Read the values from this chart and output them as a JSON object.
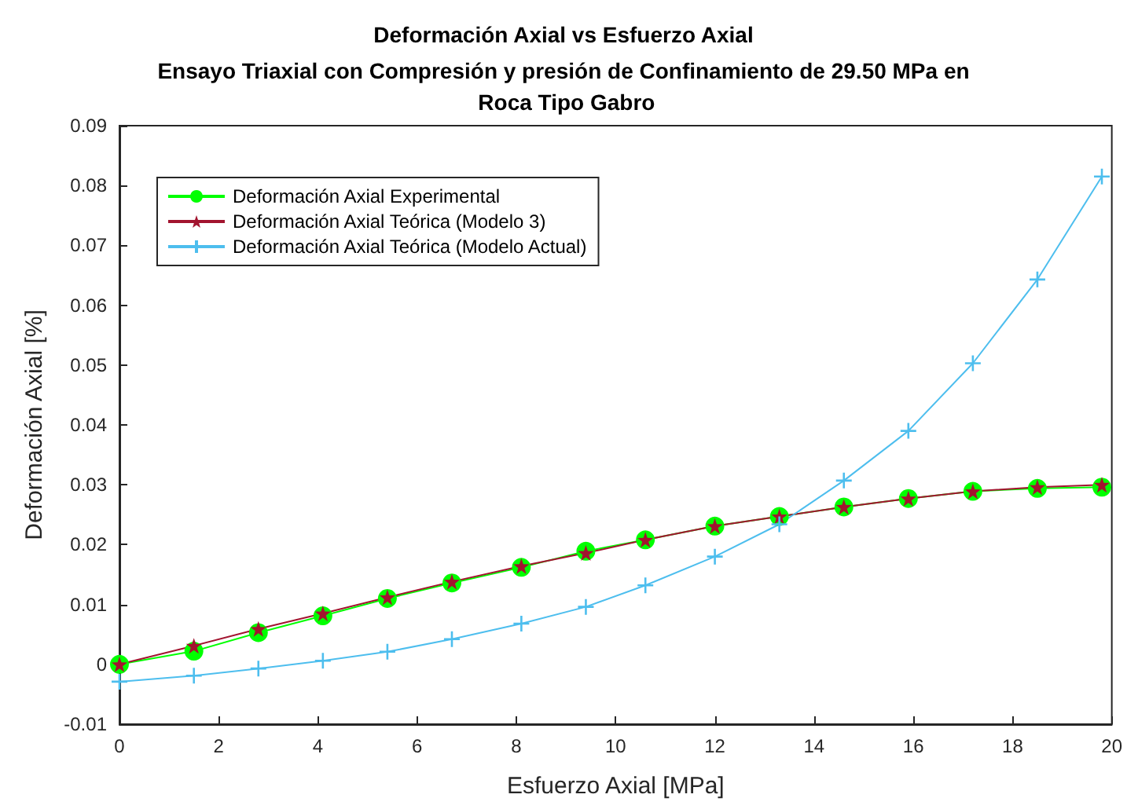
{
  "chart_data": {
    "type": "line",
    "title": "Deformación Axial vs Esfuerzo Axial",
    "subtitle": "Ensayo Triaxial con Compresión y presión de Confinamiento de 29.50 MPa en Roca Tipo Gabro",
    "xlabel": "Esfuerzo Axial [MPa]",
    "ylabel": "Deformación Axial [%]",
    "x": [
      0,
      1.5,
      2.8,
      4.1,
      5.4,
      6.7,
      8.1,
      9.4,
      10.6,
      12.0,
      13.3,
      14.6,
      15.9,
      17.2,
      18.5,
      19.8
    ],
    "series": [
      {
        "name": "Deformación Axial Experimental",
        "color": "#00ff00",
        "marker": "circle",
        "values": [
          0,
          0.0022,
          0.0053,
          0.0081,
          0.011,
          0.0136,
          0.0162,
          0.0189,
          0.0208,
          0.0231,
          0.0247,
          0.0263,
          0.0277,
          0.0289,
          0.0294,
          0.0296
        ]
      },
      {
        "name": "Deformación Axial Teórica (Modelo 3)",
        "color": "#a2142f",
        "marker": "star",
        "values": [
          0,
          0.0031,
          0.0059,
          0.0085,
          0.0112,
          0.0138,
          0.0164,
          0.0186,
          0.0208,
          0.0231,
          0.0247,
          0.0263,
          0.0277,
          0.0289,
          0.0296,
          0.03
        ]
      },
      {
        "name": "Deformación Axial Teórica (Modelo Actual)",
        "color": "#4dbeee",
        "marker": "cross",
        "values": [
          -0.0029,
          -0.0019,
          -0.0007,
          0.0006,
          0.0021,
          0.0042,
          0.0068,
          0.0096,
          0.0132,
          0.018,
          0.0234,
          0.0307,
          0.039,
          0.0503,
          0.0643,
          0.0815
        ]
      }
    ],
    "xlim": [
      0,
      20
    ],
    "xticks": [
      0,
      2,
      4,
      6,
      8,
      10,
      12,
      14,
      16,
      18,
      20
    ],
    "ylim": [
      -0.01,
      0.09
    ],
    "yticks": [
      -0.01,
      0,
      0.01,
      0.02,
      0.03,
      0.04,
      0.05,
      0.06,
      0.07,
      0.08,
      0.09
    ],
    "grid": false,
    "legend": "top left",
    "line_style": "solid"
  }
}
